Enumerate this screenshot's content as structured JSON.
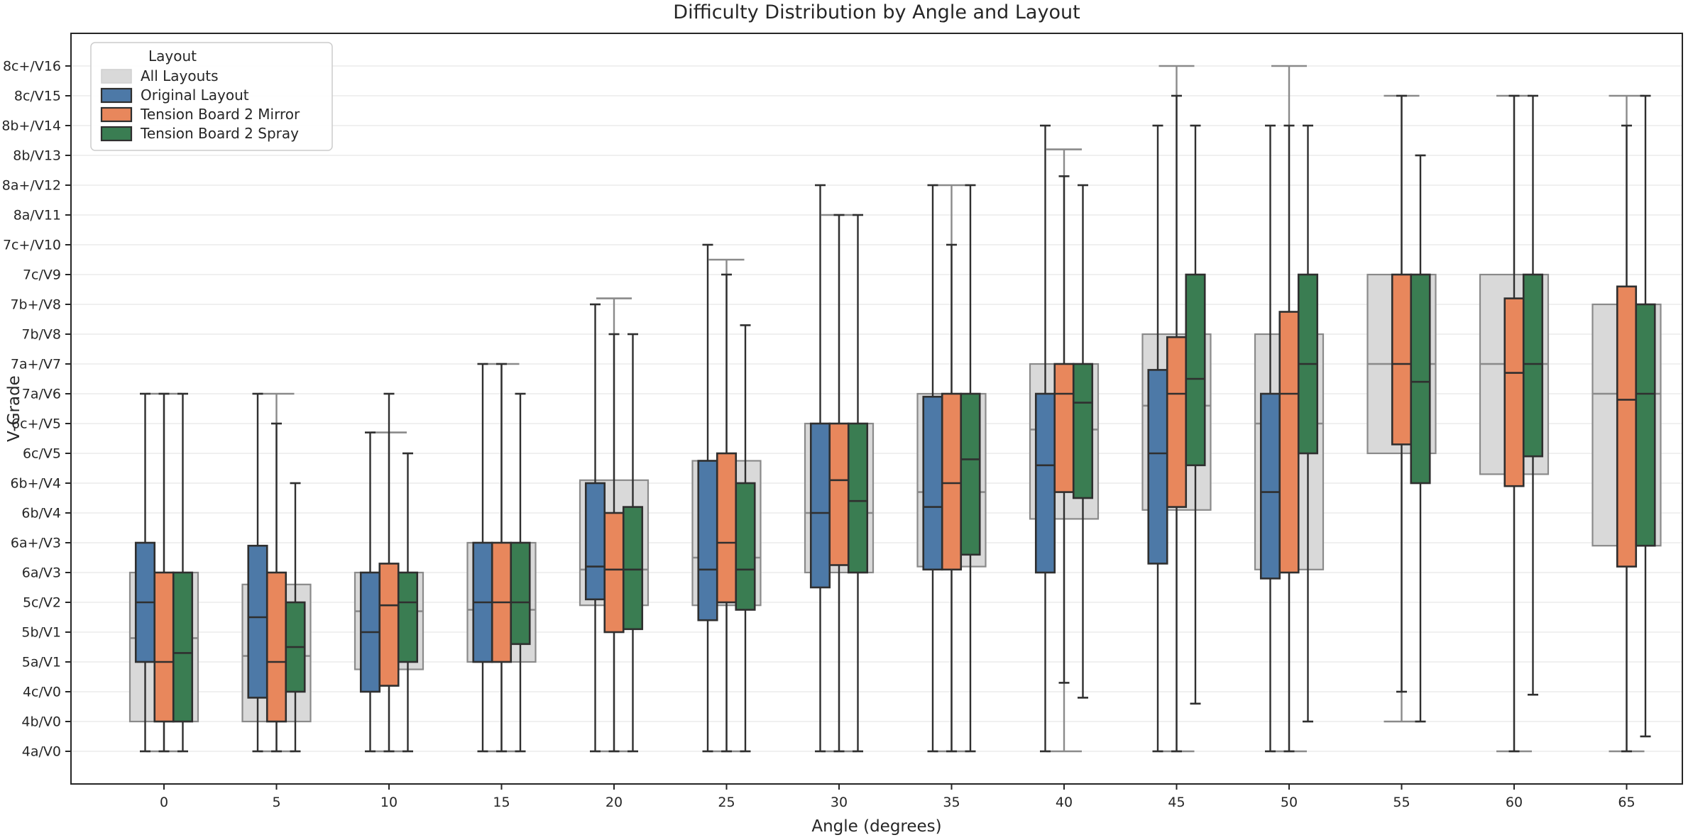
{
  "title": "Difficulty Distribution by Angle and Layout",
  "xlabel": "Angle (degrees)",
  "ylabel": "V-Grade",
  "legend": {
    "title": "Layout",
    "position": "upper left"
  },
  "chart_data": {
    "type": "boxplot",
    "title": "Difficulty Distribution by Angle and Layout",
    "xlabel": "Angle (degrees)",
    "ylabel": "V-Grade",
    "grid": true,
    "legend_position": "upper left",
    "categories": [
      0,
      5,
      10,
      15,
      20,
      25,
      30,
      35,
      40,
      45,
      50,
      55,
      60,
      65
    ],
    "y_tick_labels": [
      "4a/V0",
      "4b/V0",
      "4c/V0",
      "5a/V1",
      "5b/V1",
      "5c/V2",
      "6a/V3",
      "6a+/V3",
      "6b/V4",
      "6b+/V4",
      "6c/V5",
      "6c+/V5",
      "7a/V6",
      "7a+/V7",
      "7b/V8",
      "7b+/V8",
      "7c/V9",
      "7c+/V10",
      "8a/V11",
      "8a+/V12",
      "8b/V13",
      "8b+/V14",
      "8c/V15",
      "8c+/V16"
    ],
    "value_scale_note": "box values are V-grade indices: 0 = 4a/V0 ... 23 = 8c+/V16; box = [whisker_low, q1, median, q3, whisker_high]",
    "ylim": [
      -1.1,
      24.1
    ],
    "series": [
      {
        "name": "All Layouts",
        "fill": "#D9D9D9",
        "edge": "#8A8A8A",
        "whisker": "#8A8A8A",
        "boxes": [
          [
            0,
            1,
            3.8,
            6,
            12
          ],
          [
            0,
            1,
            3.2,
            5.6,
            12
          ],
          [
            0,
            2.75,
            4.7,
            6,
            10.7
          ],
          [
            0,
            3,
            4.75,
            7,
            13
          ],
          [
            0,
            4.9,
            6.1,
            9.1,
            15.2
          ],
          [
            0,
            4.9,
            6.5,
            9.75,
            16.5
          ],
          [
            0,
            6,
            8,
            11,
            18
          ],
          [
            0,
            6.2,
            8.7,
            12,
            19
          ],
          [
            0,
            7.8,
            10.8,
            13,
            20.2
          ],
          [
            0,
            8.1,
            11.6,
            14,
            23
          ],
          [
            0,
            6.1,
            11,
            14,
            23
          ],
          [
            1,
            10,
            13,
            16,
            22
          ],
          [
            0,
            9.3,
            13,
            16,
            22
          ],
          [
            0,
            6.9,
            12,
            15,
            22
          ]
        ]
      },
      {
        "name": "Original Layout",
        "fill": "#4D79A7",
        "edge": "#2F2F2F",
        "whisker": "#2F2F2F",
        "boxes": [
          [
            0,
            3,
            5,
            7,
            12
          ],
          [
            0,
            1.8,
            4.5,
            6.9,
            12
          ],
          [
            0,
            2,
            4,
            6,
            10.7
          ],
          [
            0,
            3,
            5,
            7,
            13
          ],
          [
            0,
            5.1,
            6.2,
            9,
            15
          ],
          [
            0,
            4.4,
            6.1,
            9.75,
            17
          ],
          [
            0,
            5.5,
            8,
            11,
            19
          ],
          [
            0,
            6.1,
            8.2,
            11.9,
            19
          ],
          [
            0,
            6,
            9.6,
            12,
            21
          ],
          [
            0,
            6.3,
            10,
            12.8,
            21
          ],
          [
            0,
            5.8,
            8.7,
            12,
            21
          ],
          null,
          null,
          null
        ]
      },
      {
        "name": "Tension Board 2 Mirror",
        "fill": "#E8875C",
        "edge": "#2F2F2F",
        "whisker": "#2F2F2F",
        "boxes": [
          [
            0,
            1,
            3,
            6,
            12
          ],
          [
            0,
            1,
            3,
            6,
            11
          ],
          [
            0,
            2.2,
            4.9,
            6.3,
            12
          ],
          [
            0,
            3,
            5,
            7,
            13
          ],
          [
            0,
            4,
            6.1,
            8,
            14
          ],
          [
            0,
            5,
            7,
            10,
            16
          ],
          [
            0,
            6.25,
            9.1,
            11,
            18
          ],
          [
            0,
            6.1,
            9,
            12,
            17
          ],
          [
            2.3,
            8.7,
            12,
            13,
            19.3
          ],
          [
            0,
            8.2,
            12,
            13.9,
            22
          ],
          [
            0,
            6,
            12,
            14.75,
            21
          ],
          [
            2,
            10.3,
            13,
            16,
            22
          ],
          [
            0,
            8.9,
            12.7,
            15.2,
            22
          ],
          [
            0,
            6.2,
            11.8,
            15.6,
            21
          ]
        ]
      },
      {
        "name": "Tension Board 2 Spray",
        "fill": "#3A7D52",
        "edge": "#2F2F2F",
        "whisker": "#2F2F2F",
        "boxes": [
          [
            0,
            1,
            3.3,
            6,
            12
          ],
          [
            0,
            2,
            3.5,
            5,
            9
          ],
          [
            0,
            3,
            5,
            6,
            10
          ],
          [
            0,
            3.6,
            5,
            7,
            12
          ],
          [
            0,
            4.1,
            6.1,
            8.2,
            14
          ],
          [
            0,
            4.75,
            6.1,
            9,
            14.3
          ],
          [
            0,
            6,
            8.4,
            11,
            18
          ],
          [
            0,
            6.6,
            9.8,
            12,
            19
          ],
          [
            1.8,
            8.5,
            11.7,
            13,
            19
          ],
          [
            1.6,
            9.6,
            12.5,
            16,
            21
          ],
          [
            1,
            10,
            13,
            16,
            21
          ],
          [
            1,
            9,
            12.4,
            16,
            20
          ],
          [
            1.9,
            9.9,
            13,
            16,
            22
          ],
          [
            0.5,
            6.9,
            12,
            15,
            22
          ]
        ]
      }
    ]
  }
}
